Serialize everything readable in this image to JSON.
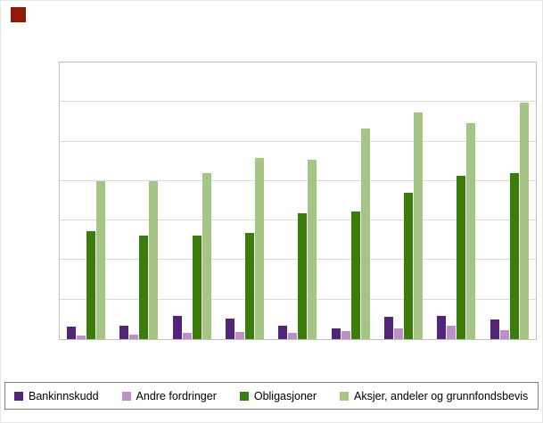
{
  "chart_data": {
    "type": "bar",
    "title": "",
    "xlabel": "",
    "ylabel": "",
    "ylim": [
      0,
      100
    ],
    "grid_divisions": 7,
    "grid": true,
    "legend_position": "bottom",
    "categories": [
      "",
      "",
      "",
      "",
      "",
      "",
      "",
      "",
      ""
    ],
    "series": [
      {
        "name": "Bankinnskudd",
        "color": "#512578",
        "values": [
          4.5,
          5,
          8.5,
          7.5,
          5,
          4,
          8,
          8.5,
          7
        ]
      },
      {
        "name": "Andre fordringer",
        "color": "#bd8fc9",
        "values": [
          1.3,
          1.6,
          2.3,
          2.6,
          2.3,
          3,
          4,
          5,
          3.2
        ]
      },
      {
        "name": "Obligasjoner",
        "color": "#3a7d0b",
        "values": [
          39,
          37.5,
          37.5,
          38.5,
          45.5,
          46,
          53,
          59,
          60
        ]
      },
      {
        "name": "Aksjer, andeler og grunnfondsbevis",
        "color": "#a5c585",
        "values": [
          57,
          57,
          60,
          65.5,
          65,
          76,
          82,
          78,
          85.5
        ]
      }
    ]
  },
  "branding": {
    "logo_color": "#8e1b09"
  }
}
